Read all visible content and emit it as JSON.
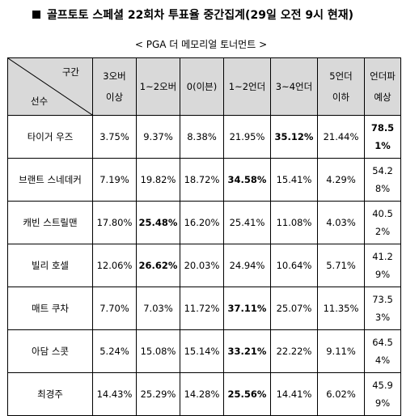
{
  "title": "골프토토 스페셜 22회차 투표율 중간집계(29일 오전 9시 현재)",
  "subtitle": "< PGA 더 메모리얼 토너먼트 >",
  "header": {
    "diag_top": "구간",
    "diag_bottom": "선수",
    "columns": [
      {
        "line1": "3오버",
        "line2": "이상"
      },
      {
        "line1": "1~2오버",
        "line2": ""
      },
      {
        "line1": "0(이븐)",
        "line2": ""
      },
      {
        "line1": "1~2언더",
        "line2": ""
      },
      {
        "line1": "3~4언더",
        "line2": ""
      },
      {
        "line1": "5언더",
        "line2": "이하"
      },
      {
        "line1": "언더파",
        "line2": "예상"
      }
    ]
  },
  "rows": [
    {
      "player": "타이거 우즈",
      "values": [
        "3.75%",
        "9.37%",
        "8.38%",
        "21.95%",
        "35.12%",
        "21.44%",
        "78.51%"
      ],
      "bold": [
        4,
        6
      ]
    },
    {
      "player": "브랜트 스네데커",
      "values": [
        "7.19%",
        "19.82%",
        "18.72%",
        "34.58%",
        "15.41%",
        "4.29%",
        "54.28%"
      ],
      "bold": [
        3
      ]
    },
    {
      "player": "캐빈 스트릴맨",
      "values": [
        "17.80%",
        "25.48%",
        "16.20%",
        "25.41%",
        "11.08%",
        "4.03%",
        "40.52%"
      ],
      "bold": [
        1
      ]
    },
    {
      "player": "빌리 호셀",
      "values": [
        "12.06%",
        "26.62%",
        "20.03%",
        "24.94%",
        "10.64%",
        "5.71%",
        "41.29%"
      ],
      "bold": [
        1
      ]
    },
    {
      "player": "매트 쿠차",
      "values": [
        "7.70%",
        "7.03%",
        "11.72%",
        "37.11%",
        "25.07%",
        "11.35%",
        "73.53%"
      ],
      "bold": [
        3
      ]
    },
    {
      "player": "아담 스콧",
      "values": [
        "5.24%",
        "15.08%",
        "15.14%",
        "33.21%",
        "22.22%",
        "9.11%",
        "64.54%"
      ],
      "bold": [
        3
      ]
    },
    {
      "player": "최경주",
      "values": [
        "14.43%",
        "25.29%",
        "14.28%",
        "25.56%",
        "14.41%",
        "6.02%",
        "45.99%"
      ],
      "bold": [
        3
      ]
    }
  ]
}
